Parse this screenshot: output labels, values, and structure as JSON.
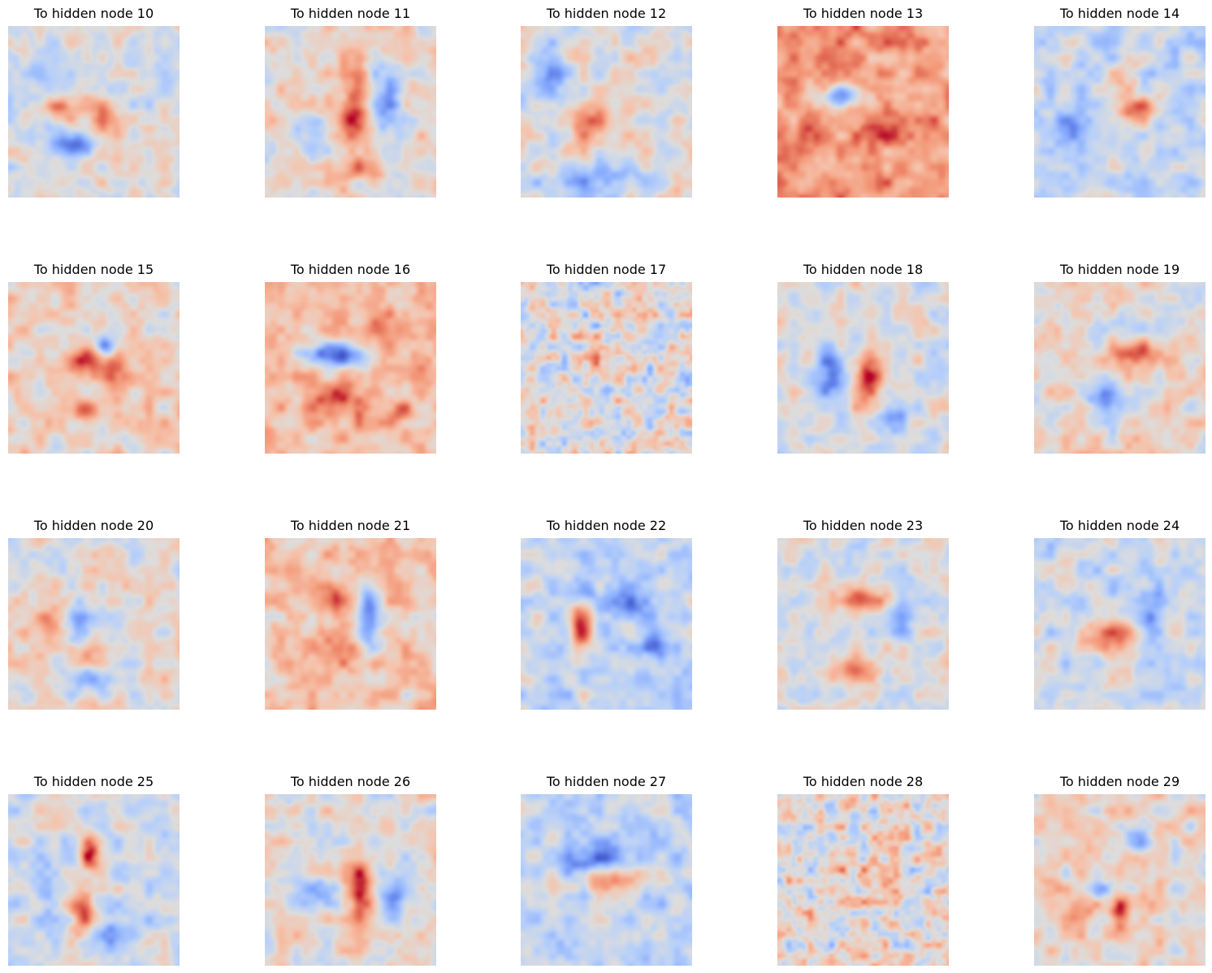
{
  "figure": {
    "colormap": "coolwarm",
    "colors": {
      "negative": "#3b4cc0",
      "neutral": "#dddddd",
      "positive": "#b40426"
    }
  },
  "chart_data": {
    "type": "heatmap",
    "layout": {
      "rows": 4,
      "cols": 5
    },
    "axes": "off",
    "colormap": "coolwarm",
    "panels": [
      {
        "title": "To hidden node 10",
        "node": 10,
        "bias": -0.05,
        "blobs": [
          {
            "x": 0.3,
            "y": 0.48,
            "sx": 0.1,
            "sy": 0.05,
            "v": 1.1
          },
          {
            "x": 0.55,
            "y": 0.55,
            "sx": 0.06,
            "sy": 0.1,
            "v": 1.0
          },
          {
            "x": 0.4,
            "y": 0.68,
            "sx": 0.12,
            "sy": 0.05,
            "v": -1.1
          },
          {
            "x": 0.2,
            "y": 0.3,
            "sx": 0.1,
            "sy": 0.12,
            "v": -0.5
          }
        ]
      },
      {
        "title": "To hidden node 11",
        "node": 11,
        "bias": 0.12,
        "blobs": [
          {
            "x": 0.52,
            "y": 0.5,
            "sx": 0.06,
            "sy": 0.15,
            "v": 1.5
          },
          {
            "x": 0.72,
            "y": 0.45,
            "sx": 0.06,
            "sy": 0.15,
            "v": -1.1
          },
          {
            "x": 0.28,
            "y": 0.6,
            "sx": 0.06,
            "sy": 0.07,
            "v": -0.9
          },
          {
            "x": 0.52,
            "y": 0.83,
            "sx": 0.1,
            "sy": 0.06,
            "v": 0.6
          }
        ]
      },
      {
        "title": "To hidden node 12",
        "node": 12,
        "bias": 0.0,
        "blobs": [
          {
            "x": 0.42,
            "y": 0.57,
            "sx": 0.12,
            "sy": 0.08,
            "v": 0.8
          },
          {
            "x": 0.15,
            "y": 0.3,
            "sx": 0.08,
            "sy": 0.12,
            "v": -0.9
          },
          {
            "x": 0.45,
            "y": 0.88,
            "sx": 0.2,
            "sy": 0.06,
            "v": -0.8
          }
        ]
      },
      {
        "title": "To hidden node 13",
        "node": 13,
        "bias": 0.75,
        "blobs": [
          {
            "x": 0.38,
            "y": 0.4,
            "sx": 0.1,
            "sy": 0.05,
            "v": -1.8
          },
          {
            "x": 0.15,
            "y": 0.65,
            "sx": 0.06,
            "sy": 0.08,
            "v": 0.5
          },
          {
            "x": 0.6,
            "y": 0.62,
            "sx": 0.08,
            "sy": 0.06,
            "v": 0.4
          }
        ]
      },
      {
        "title": "To hidden node 14",
        "node": 14,
        "bias": -0.2,
        "blobs": [
          {
            "x": 0.58,
            "y": 0.48,
            "sx": 0.1,
            "sy": 0.05,
            "v": 1.1
          },
          {
            "x": 0.55,
            "y": 0.28,
            "sx": 0.06,
            "sy": 0.08,
            "v": 0.6
          },
          {
            "x": 0.2,
            "y": 0.6,
            "sx": 0.08,
            "sy": 0.1,
            "v": -0.7
          }
        ]
      },
      {
        "title": "To hidden node 15",
        "node": 15,
        "bias": 0.15,
        "blobs": [
          {
            "x": 0.45,
            "y": 0.45,
            "sx": 0.06,
            "sy": 0.06,
            "v": 1.3
          },
          {
            "x": 0.62,
            "y": 0.55,
            "sx": 0.06,
            "sy": 0.1,
            "v": 1.1
          },
          {
            "x": 0.57,
            "y": 0.37,
            "sx": 0.04,
            "sy": 0.05,
            "v": -1.1
          },
          {
            "x": 0.42,
            "y": 0.75,
            "sx": 0.08,
            "sy": 0.05,
            "v": 0.7
          }
        ]
      },
      {
        "title": "To hidden node 16",
        "node": 16,
        "bias": 0.45,
        "blobs": [
          {
            "x": 0.38,
            "y": 0.42,
            "sx": 0.13,
            "sy": 0.05,
            "v": -1.7
          },
          {
            "x": 0.42,
            "y": 0.7,
            "sx": 0.1,
            "sy": 0.07,
            "v": 0.8
          },
          {
            "x": 0.78,
            "y": 0.75,
            "sx": 0.06,
            "sy": 0.05,
            "v": 0.6
          },
          {
            "x": 0.66,
            "y": 0.25,
            "sx": 0.05,
            "sy": 0.1,
            "v": 0.5
          }
        ]
      },
      {
        "title": "To hidden node 17",
        "node": 17,
        "bias": 0.0,
        "blobs": [
          {
            "x": 0.48,
            "y": 0.42,
            "sx": 0.1,
            "sy": 0.06,
            "v": 0.7
          }
        ]
      },
      {
        "title": "To hidden node 18",
        "node": 18,
        "bias": 0.0,
        "blobs": [
          {
            "x": 0.52,
            "y": 0.55,
            "sx": 0.06,
            "sy": 0.1,
            "v": 1.3
          },
          {
            "x": 0.3,
            "y": 0.52,
            "sx": 0.06,
            "sy": 0.1,
            "v": -1.2
          },
          {
            "x": 0.68,
            "y": 0.78,
            "sx": 0.06,
            "sy": 0.06,
            "v": -1.0
          }
        ]
      },
      {
        "title": "To hidden node 19",
        "node": 19,
        "bias": 0.12,
        "blobs": [
          {
            "x": 0.58,
            "y": 0.42,
            "sx": 0.11,
            "sy": 0.05,
            "v": 1.2
          },
          {
            "x": 0.4,
            "y": 0.68,
            "sx": 0.07,
            "sy": 0.07,
            "v": -1.3
          },
          {
            "x": 0.55,
            "y": 0.25,
            "sx": 0.1,
            "sy": 0.06,
            "v": -0.5
          }
        ]
      },
      {
        "title": "To hidden node 20",
        "node": 20,
        "bias": 0.05,
        "blobs": [
          {
            "x": 0.4,
            "y": 0.5,
            "sx": 0.05,
            "sy": 0.12,
            "v": -1.0
          },
          {
            "x": 0.25,
            "y": 0.48,
            "sx": 0.06,
            "sy": 0.08,
            "v": 0.9
          },
          {
            "x": 0.45,
            "y": 0.67,
            "sx": 0.06,
            "sy": 0.05,
            "v": 0.8
          },
          {
            "x": 0.52,
            "y": 0.82,
            "sx": 0.1,
            "sy": 0.06,
            "v": -0.7
          }
        ]
      },
      {
        "title": "To hidden node 21",
        "node": 21,
        "bias": 0.35,
        "blobs": [
          {
            "x": 0.6,
            "y": 0.45,
            "sx": 0.05,
            "sy": 0.15,
            "v": -1.6
          },
          {
            "x": 0.4,
            "y": 0.35,
            "sx": 0.08,
            "sy": 0.07,
            "v": 1.0
          },
          {
            "x": 0.4,
            "y": 0.64,
            "sx": 0.08,
            "sy": 0.05,
            "v": 0.9
          }
        ]
      },
      {
        "title": "To hidden node 22",
        "node": 22,
        "bias": -0.2,
        "blobs": [
          {
            "x": 0.35,
            "y": 0.52,
            "sx": 0.05,
            "sy": 0.11,
            "v": 1.5
          },
          {
            "x": 0.65,
            "y": 0.38,
            "sx": 0.12,
            "sy": 0.06,
            "v": -0.9
          },
          {
            "x": 0.78,
            "y": 0.6,
            "sx": 0.05,
            "sy": 0.07,
            "v": -1.0
          },
          {
            "x": 0.37,
            "y": 0.3,
            "sx": 0.06,
            "sy": 0.06,
            "v": -0.7
          }
        ]
      },
      {
        "title": "To hidden node 23",
        "node": 23,
        "bias": -0.05,
        "blobs": [
          {
            "x": 0.5,
            "y": 0.35,
            "sx": 0.1,
            "sy": 0.05,
            "v": 1.0
          },
          {
            "x": 0.42,
            "y": 0.75,
            "sx": 0.12,
            "sy": 0.05,
            "v": 1.0
          },
          {
            "x": 0.72,
            "y": 0.45,
            "sx": 0.05,
            "sy": 0.08,
            "v": -1.0
          }
        ]
      },
      {
        "title": "To hidden node 24",
        "node": 24,
        "bias": -0.15,
        "blobs": [
          {
            "x": 0.45,
            "y": 0.55,
            "sx": 0.12,
            "sy": 0.08,
            "v": 1.1
          },
          {
            "x": 0.68,
            "y": 0.5,
            "sx": 0.06,
            "sy": 0.1,
            "v": -1.0
          },
          {
            "x": 0.55,
            "y": 0.3,
            "sx": 0.12,
            "sy": 0.06,
            "v": -0.5
          }
        ]
      },
      {
        "title": "To hidden node 25",
        "node": 25,
        "bias": -0.15,
        "blobs": [
          {
            "x": 0.47,
            "y": 0.32,
            "sx": 0.04,
            "sy": 0.08,
            "v": 1.6
          },
          {
            "x": 0.43,
            "y": 0.7,
            "sx": 0.05,
            "sy": 0.08,
            "v": 1.4
          },
          {
            "x": 0.62,
            "y": 0.82,
            "sx": 0.05,
            "sy": 0.08,
            "v": -1.0
          },
          {
            "x": 0.25,
            "y": 0.6,
            "sx": 0.05,
            "sy": 0.12,
            "v": -0.6
          }
        ]
      },
      {
        "title": "To hidden node 26",
        "node": 26,
        "bias": 0.05,
        "blobs": [
          {
            "x": 0.55,
            "y": 0.55,
            "sx": 0.06,
            "sy": 0.13,
            "v": 1.5
          },
          {
            "x": 0.3,
            "y": 0.55,
            "sx": 0.1,
            "sy": 0.05,
            "v": -1.1
          },
          {
            "x": 0.75,
            "y": 0.62,
            "sx": 0.06,
            "sy": 0.1,
            "v": -1.1
          }
        ]
      },
      {
        "title": "To hidden node 27",
        "node": 27,
        "bias": -0.25,
        "blobs": [
          {
            "x": 0.42,
            "y": 0.38,
            "sx": 0.12,
            "sy": 0.06,
            "v": -1.0
          },
          {
            "x": 0.5,
            "y": 0.5,
            "sx": 0.15,
            "sy": 0.05,
            "v": 1.0
          }
        ]
      },
      {
        "title": "To hidden node 28",
        "node": 28,
        "bias": 0.05,
        "blobs": [
          {
            "x": 0.5,
            "y": 0.5,
            "sx": 0.15,
            "sy": 0.12,
            "v": 0.3
          }
        ]
      },
      {
        "title": "To hidden node 29",
        "node": 29,
        "bias": 0.15,
        "blobs": [
          {
            "x": 0.38,
            "y": 0.55,
            "sx": 0.05,
            "sy": 0.04,
            "v": -1.0
          },
          {
            "x": 0.5,
            "y": 0.68,
            "sx": 0.04,
            "sy": 0.08,
            "v": 1.4
          },
          {
            "x": 0.6,
            "y": 0.28,
            "sx": 0.05,
            "sy": 0.05,
            "v": -1.1
          },
          {
            "x": 0.25,
            "y": 0.65,
            "sx": 0.08,
            "sy": 0.05,
            "v": 0.8
          }
        ]
      }
    ]
  }
}
